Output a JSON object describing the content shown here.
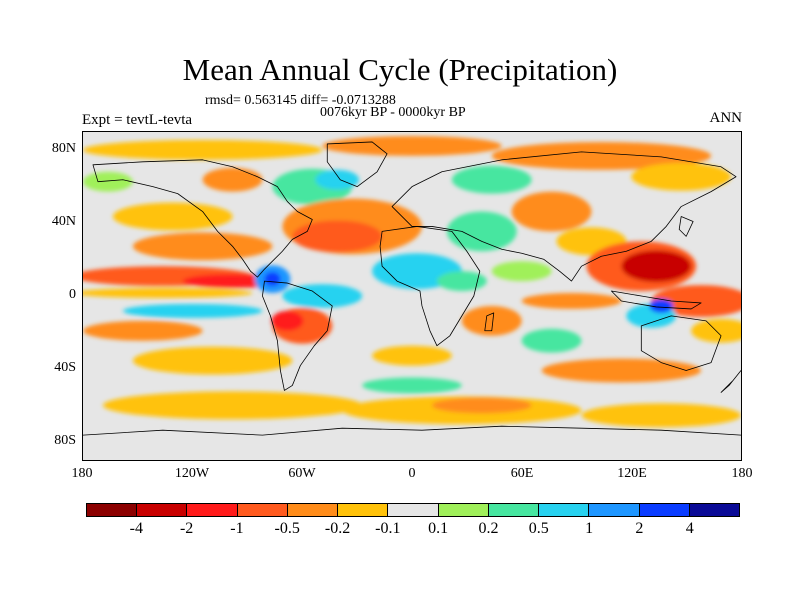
{
  "title": "Mean Annual Cycle (Precipitation)",
  "stats": "rmsd= 0.563145 diff= -0.0713288",
  "period": "0076kyr BP - 0000kyr BP",
  "expt": "Expt = tevtL-tevta",
  "season": "ANN",
  "lat_labels": [
    "80N",
    "40N",
    "0",
    "40S",
    "80S"
  ],
  "lon_labels": [
    "180",
    "120W",
    "60W",
    "0",
    "60E",
    "120E",
    "180"
  ],
  "colorbar": {
    "labels": [
      "-4",
      "-2",
      "-1",
      "-0.5",
      "-0.2",
      "-0.1",
      "0.1",
      "0.2",
      "0.5",
      "1",
      "2",
      "4"
    ],
    "colors": [
      "#8b0000",
      "#c80000",
      "#ff1a1a",
      "#ff5a1e",
      "#ff8c1a",
      "#ffc20a",
      "#e6e6e6",
      "#a0f05a",
      "#46e6a0",
      "#28d2f0",
      "#1e96ff",
      "#0a3cff",
      "#0a0a96"
    ]
  },
  "map": {
    "projection": "cylindrical equidistant",
    "lon_range": [
      -180,
      180
    ],
    "lat_range": [
      -90,
      90
    ],
    "background_color": "#e6e6e6"
  }
}
